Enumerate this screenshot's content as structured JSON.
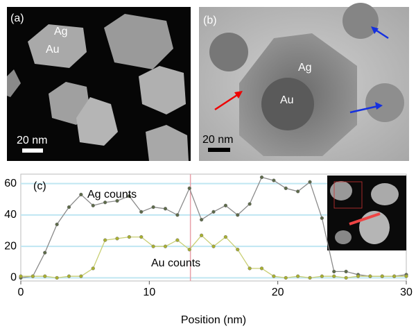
{
  "panel_a": {
    "label": "(a)",
    "ag": "Ag",
    "au": "Au",
    "scale": "20 nm"
  },
  "panel_b": {
    "label": "(b)",
    "ag": "Ag",
    "au": "Au",
    "scale": "20 nm"
  },
  "chart_data": {
    "type": "line",
    "panel_label": "(c)",
    "x_label": "Position (nm)",
    "annotations": [
      "Ag counts",
      "Au counts"
    ],
    "xlim": [
      0,
      30
    ],
    "ylim": [
      -2,
      66
    ],
    "xticks": [
      0,
      10,
      20,
      30
    ],
    "yticks": [
      0,
      20,
      40,
      60
    ],
    "grid": true,
    "grid_color": "#bfe6f2",
    "cursor_x": 13.2,
    "x": [
      0,
      0.9375,
      1.875,
      2.8125,
      3.75,
      4.6875,
      5.625,
      6.5625,
      7.5,
      8.4375,
      9.375,
      10.3125,
      11.25,
      12.1875,
      13.125,
      14.0625,
      15,
      15.9375,
      16.875,
      17.8125,
      18.75,
      19.6875,
      20.625,
      21.5625,
      22.5,
      23.4375,
      24.375,
      25.3125,
      26.25,
      27.1875,
      28.125,
      29.0625,
      30
    ],
    "series": [
      {
        "name": "Ag counts",
        "color": "#8a8a8a",
        "marker": "#5d6a4a",
        "values": [
          0,
          1,
          16,
          34,
          45,
          53,
          46,
          48,
          49,
          52,
          42,
          45,
          44,
          40,
          57,
          37,
          42,
          46,
          40,
          47,
          64,
          62,
          57,
          55,
          61,
          38,
          4,
          4,
          2,
          1,
          1,
          1,
          2
        ]
      },
      {
        "name": "Au counts",
        "color": "#c9cf74",
        "marker": "#a9b030",
        "values": [
          1,
          1,
          1,
          0,
          1,
          1,
          6,
          24,
          25,
          26,
          26,
          20,
          20,
          24,
          18,
          27,
          20,
          26,
          18,
          6,
          6,
          1,
          0,
          1,
          0,
          1,
          1,
          0,
          1,
          1,
          1,
          1,
          1
        ]
      }
    ]
  }
}
